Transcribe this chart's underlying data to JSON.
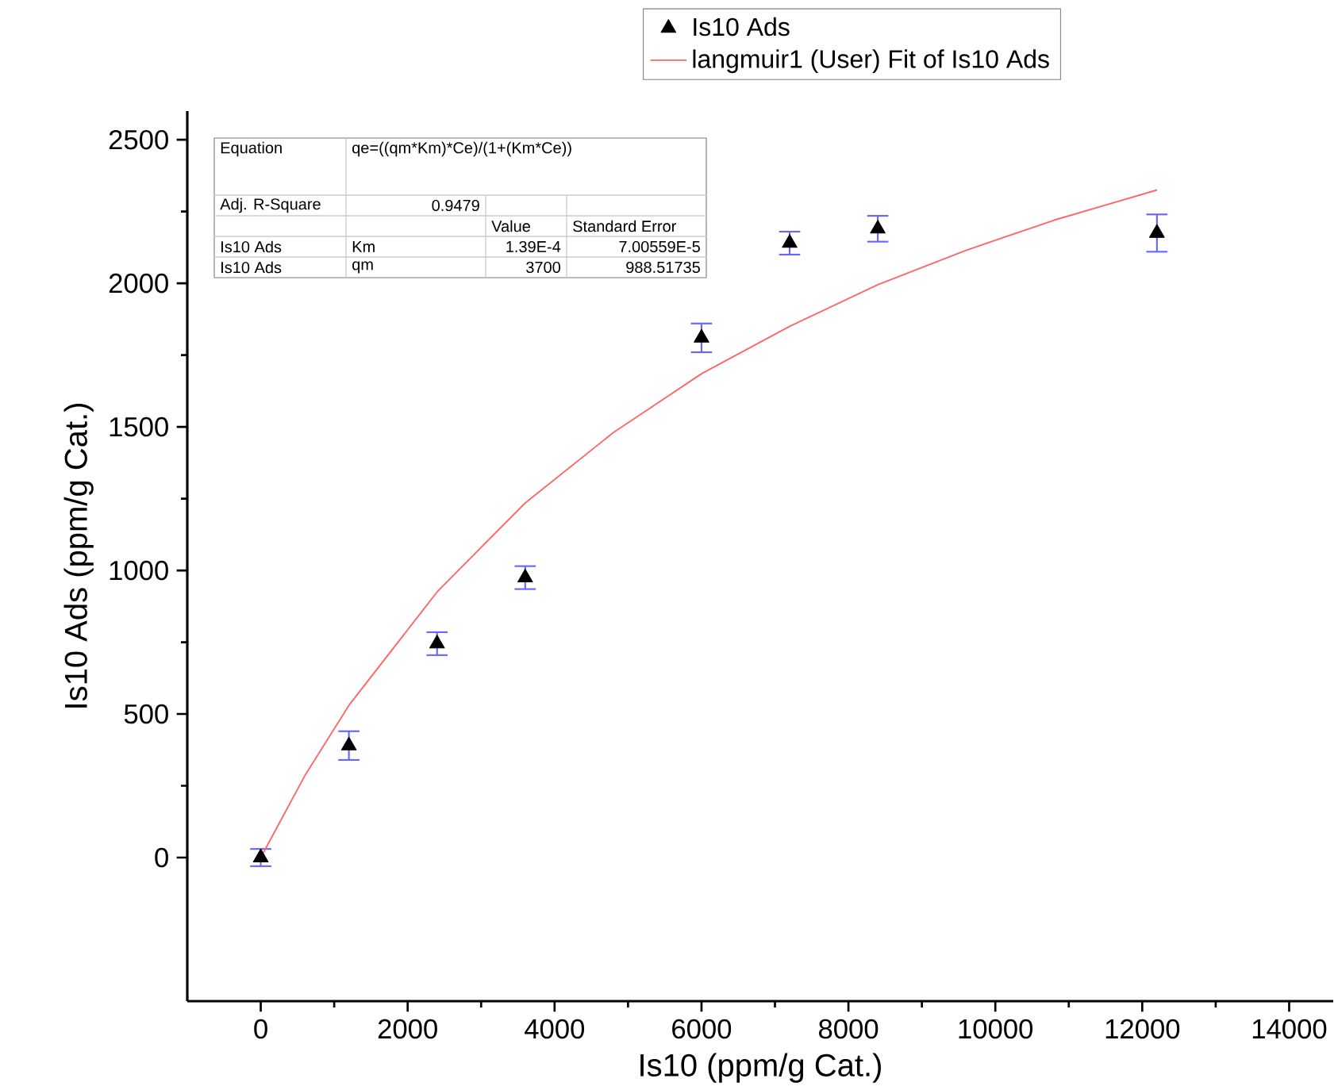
{
  "chart_data": {
    "type": "scatter",
    "xlabel": "Is10 (ppm/g Cat.)",
    "ylabel": "Is10 Ads (ppm/g Cat.)",
    "xlim": [
      -1000,
      14600
    ],
    "ylim": [
      -500,
      2600
    ],
    "xticks": [
      0,
      2000,
      4000,
      6000,
      8000,
      10000,
      12000,
      14000
    ],
    "yticks": [
      0,
      500,
      1000,
      1500,
      2000,
      2500
    ],
    "marker": "triangle",
    "legend": "top",
    "grid": false,
    "series": [
      {
        "name": "Is10 Ads",
        "color": "#000000",
        "x": [
          0,
          1200,
          2400,
          3600,
          6000,
          7200,
          8400,
          12200
        ],
        "values": [
          0,
          390,
          745,
          975,
          1810,
          2140,
          2190,
          2175
        ],
        "errors": [
          30,
          50,
          40,
          40,
          50,
          40,
          45,
          65
        ]
      },
      {
        "name": "langmuir1 (User) Fit of Is10 Ads",
        "type": "line",
        "color": "#ff6666",
        "marker": "none",
        "x": [
          0,
          600,
          1200,
          2400,
          3600,
          4800,
          6000,
          7200,
          8400,
          9600,
          10800,
          12200
        ],
        "values": [
          0,
          285,
          530,
          925,
          1235,
          1480,
          1685,
          1850,
          1995,
          2115,
          2220,
          2325
        ]
      }
    ],
    "annotations": [
      "Equation",
      "qe=((qm*Km)*Ce)/(1+(Km*Ce))",
      "Adj. R-Square",
      "0.9479",
      "Value",
      "Standard Error",
      "Is10 Ads",
      "Km",
      "1.39E-4",
      "7.00559E-5",
      "Is10 Ads",
      "qm",
      "3700",
      "988.51735"
    ]
  }
}
